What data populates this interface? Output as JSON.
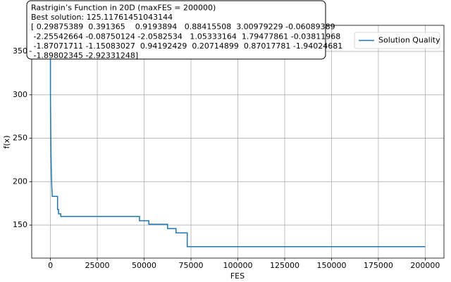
{
  "chart_data": {
    "type": "line",
    "annotation": [
      "Rastrigin’s Function in 20D (maxFES = 200000)",
      "Best solution: 125.11761451043144",
      "[ 0.29875389  0.391365    0.9193894   0.88415508  3.00979229 -0.06089389",
      " -2.25542664 -0.08750124 -2.0582534   1.05333164  1.79477861 -0.03811968",
      " -1.87071711 -1.15083027  0.94192429  0.20714899  0.87017781 -1.94024681",
      " -1.89802345 -2.92331248]"
    ],
    "xlabel": "FES",
    "ylabel": "f(x)",
    "x": [
      0,
      0,
      200,
      300,
      500,
      700,
      1000,
      3800,
      3800,
      4300,
      4300,
      5500,
      5500,
      47500,
      47500,
      52500,
      52500,
      62500,
      62500,
      67000,
      67000,
      73000,
      73000,
      200000
    ],
    "series": [
      {
        "name": "Solution Quality",
        "color": "#1f77b4",
        "values": [
          370,
          300,
          250,
          230,
          210,
          195,
          183,
          183,
          168,
          168,
          163,
          163,
          160,
          160,
          155,
          155,
          151,
          151,
          146,
          146,
          141,
          141,
          125.12,
          125.12
        ]
      }
    ],
    "xlim": [
      -10000,
      210000
    ],
    "xticks": [
      0,
      25000,
      50000,
      75000,
      100000,
      125000,
      150000,
      175000,
      200000
    ],
    "ylim": [
      112,
      380
    ],
    "yticks": [
      150,
      200,
      250,
      300,
      350
    ],
    "grid": true,
    "legend": "upper right"
  }
}
